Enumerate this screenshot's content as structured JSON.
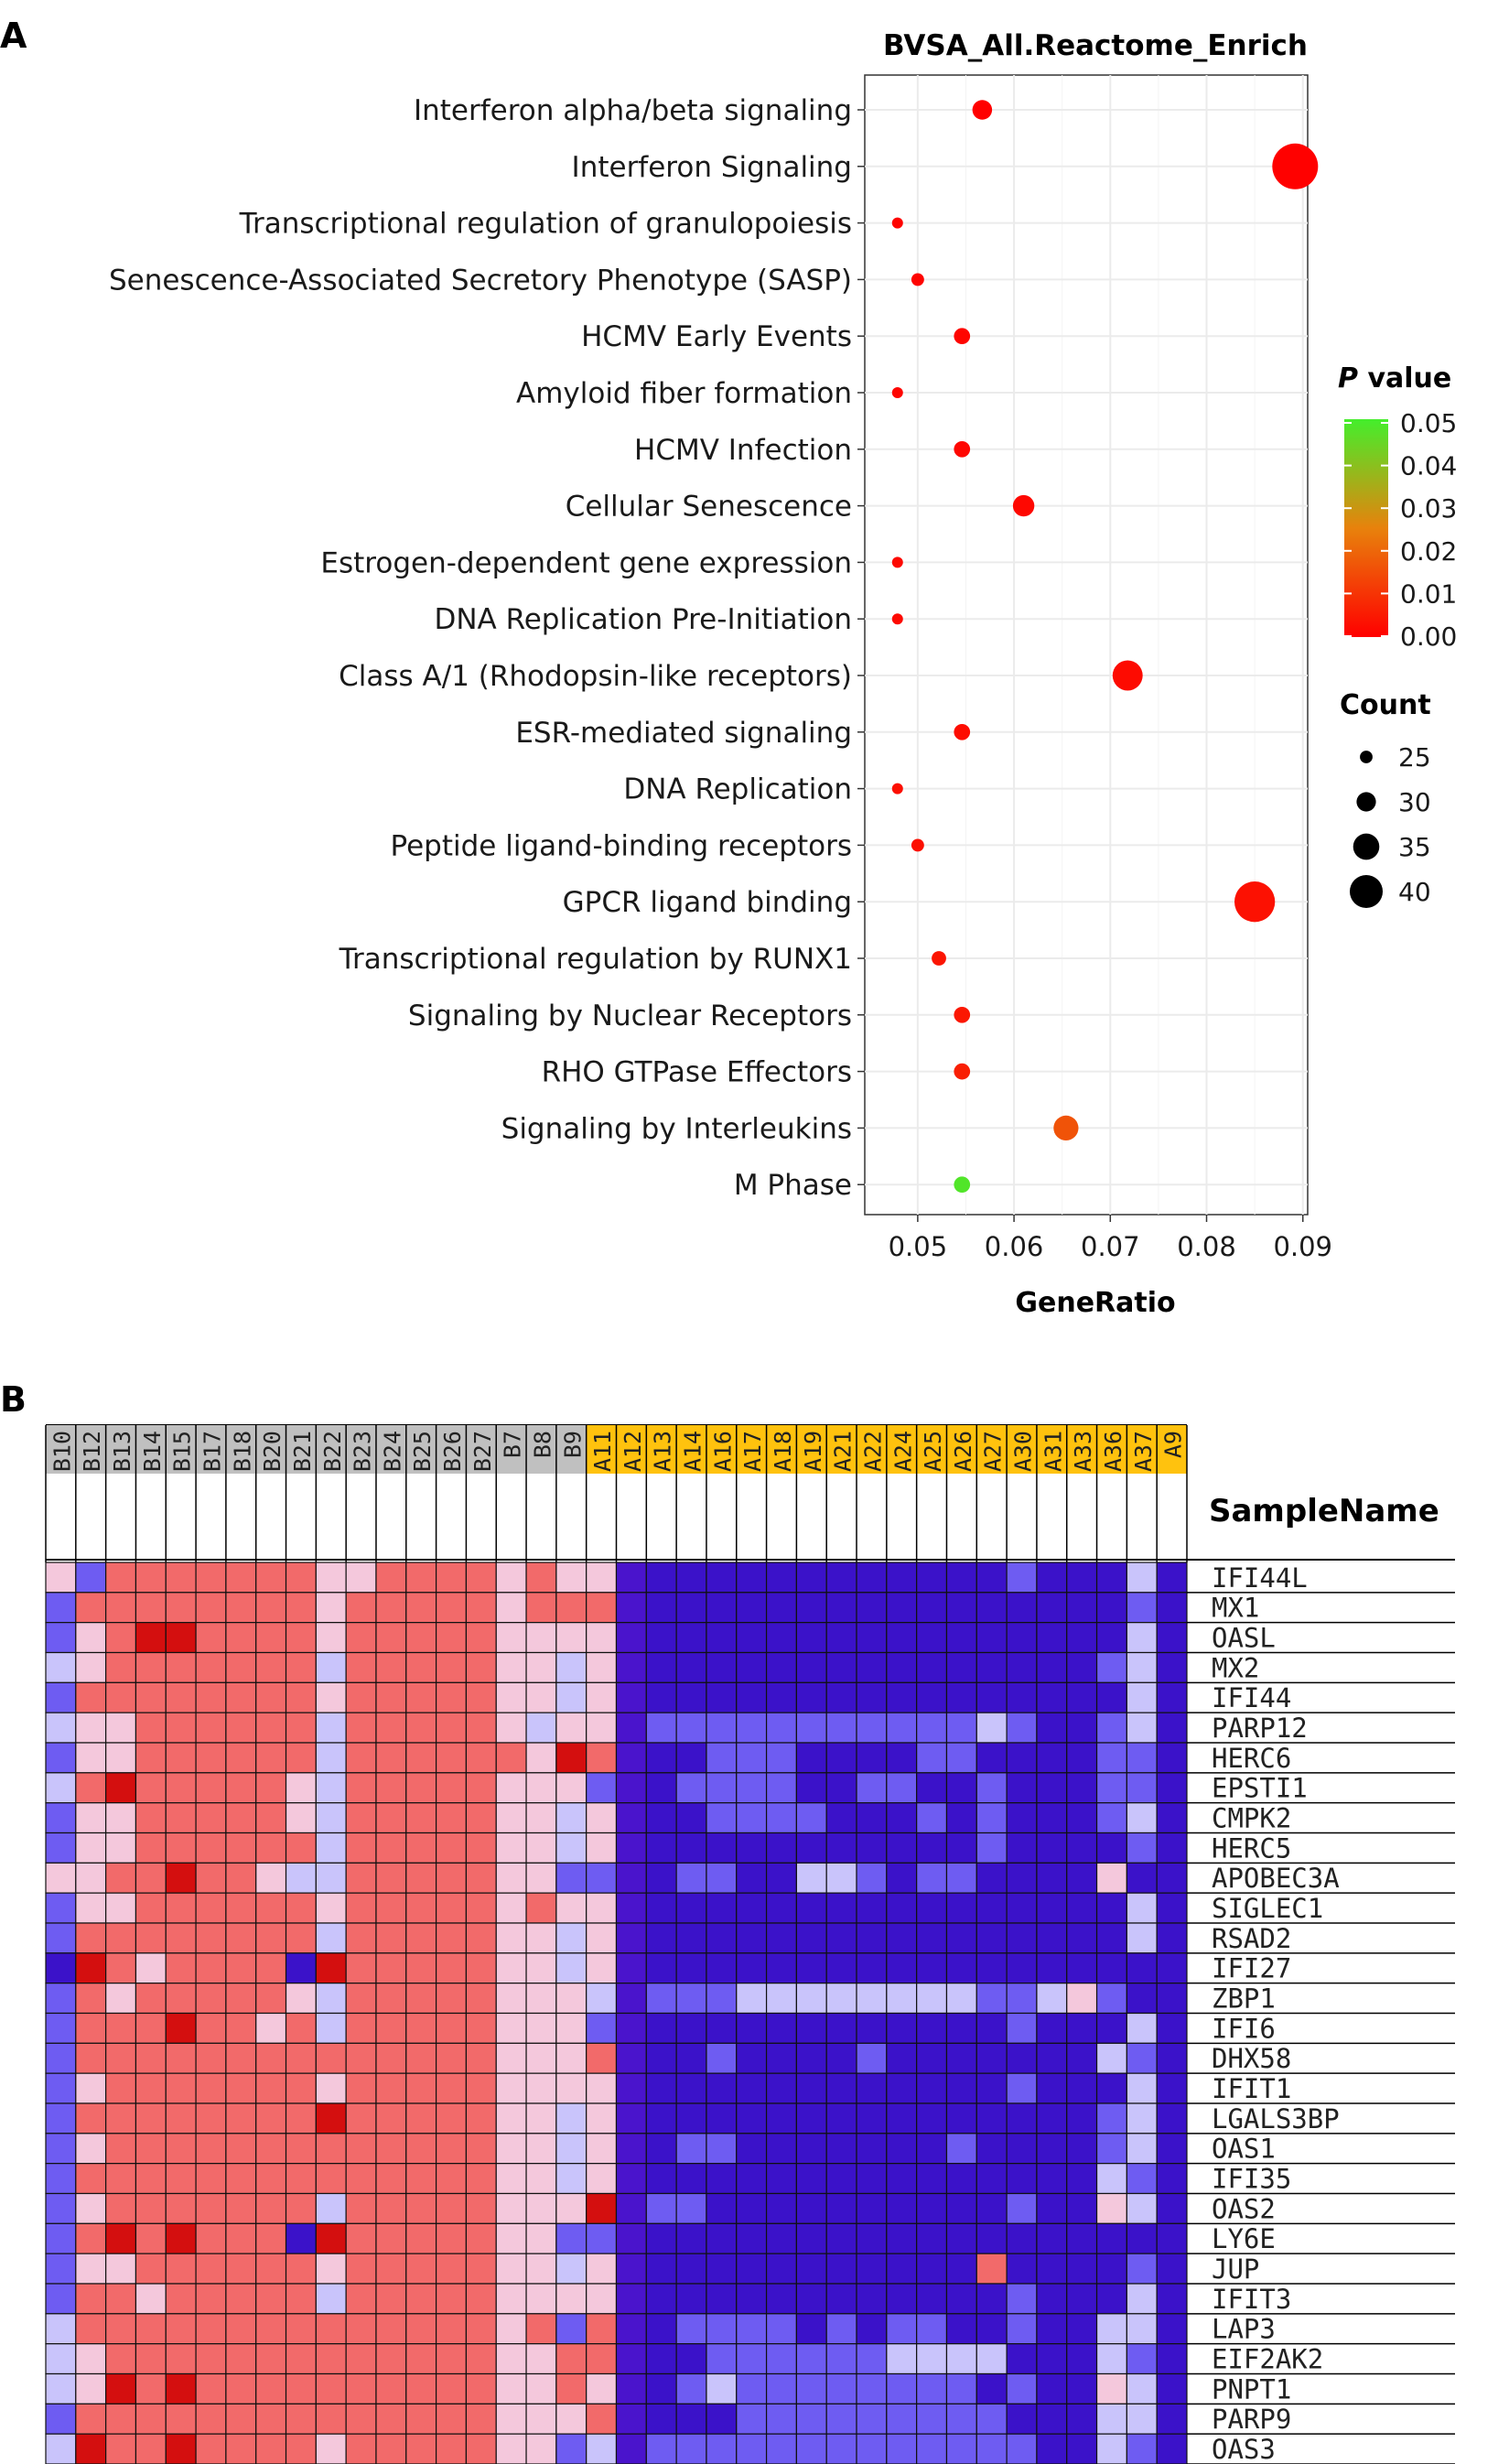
{
  "panels": {
    "a_label": "A",
    "b_label": "B"
  },
  "chart_data": [
    {
      "type": "scatter",
      "title": "BVSA_All.Reactome_Enrich",
      "xlabel": "GeneRatio",
      "ylabel": "",
      "xlim": [
        0.0445,
        0.0905
      ],
      "xticks": [
        0.05,
        0.06,
        0.07,
        0.08,
        0.09
      ],
      "xtick_labels": [
        "0.05",
        "0.06",
        "0.07",
        "0.08",
        "0.09"
      ],
      "categories": [
        "Interferon alpha/beta signaling",
        "Interferon Signaling",
        "Transcriptional regulation of granulopoiesis",
        "Senescence-Associated Secretory Phenotype (SASP)",
        "HCMV Early Events",
        "Amyloid fiber formation",
        "HCMV Infection",
        "Cellular Senescence",
        "Estrogen-dependent gene expression",
        "DNA Replication Pre-Initiation",
        "Class A/1 (Rhodopsin-like receptors)",
        "ESR-mediated signaling",
        "DNA Replication",
        "Peptide ligand-binding receptors",
        "GPCR ligand binding",
        "Transcriptional regulation by RUNX1",
        "Signaling by Nuclear Receptors",
        "RHO GTPase Effectors",
        "Signaling by Interleukins",
        "M Phase"
      ],
      "gene_ratio": [
        0.0567,
        0.0892,
        0.0479,
        0.05,
        0.0546,
        0.0479,
        0.0546,
        0.061,
        0.0479,
        0.0479,
        0.0718,
        0.0546,
        0.0479,
        0.05,
        0.085,
        0.0522,
        0.0546,
        0.0546,
        0.0654,
        0.0546
      ],
      "count": [
        27,
        42,
        22,
        23,
        25,
        22,
        25,
        28,
        22,
        22,
        33,
        25,
        22,
        23,
        39,
        24,
        25,
        25,
        30,
        25
      ],
      "p_value": [
        0.0001,
        0.0001,
        0.0006,
        0.0008,
        0.001,
        0.0011,
        0.0013,
        0.0015,
        0.0018,
        0.002,
        0.0022,
        0.0025,
        0.0028,
        0.003,
        0.0033,
        0.004,
        0.0045,
        0.006,
        0.016,
        0.048
      ],
      "legend_color": {
        "title_p": "P",
        "title_rest": " value",
        "ticks": [
          "0.05",
          "0.04",
          "0.03",
          "0.02",
          "0.01",
          "0.00"
        ],
        "colors": [
          "#ff0000",
          "#e8820c",
          "#44ee2c"
        ]
      },
      "legend_size": {
        "title": "Count",
        "values": [
          25,
          30,
          35,
          40
        ],
        "labels": [
          "25",
          "30",
          "35",
          "40"
        ]
      },
      "legend_placement": "right"
    },
    {
      "type": "heatmap",
      "legend_title": "SampleName",
      "samples": [
        "B10",
        "B12",
        "B13",
        "B14",
        "B15",
        "B17",
        "B18",
        "B20",
        "B21",
        "B22",
        "B23",
        "B24",
        "B25",
        "B26",
        "B27",
        "B7",
        "B8",
        "B9",
        "A11",
        "A12",
        "A13",
        "A14",
        "A16",
        "A17",
        "A18",
        "A19",
        "A21",
        "A22",
        "A24",
        "A25",
        "A26",
        "A27",
        "A30",
        "A31",
        "A33",
        "A36",
        "A37",
        "A9"
      ],
      "groups": [
        "B",
        "B",
        "B",
        "B",
        "B",
        "B",
        "B",
        "B",
        "B",
        "B",
        "B",
        "B",
        "B",
        "B",
        "B",
        "B",
        "B",
        "B",
        "A",
        "A",
        "A",
        "A",
        "A",
        "A",
        "A",
        "A",
        "A",
        "A",
        "A",
        "A",
        "A",
        "A",
        "A",
        "A",
        "A",
        "A",
        "A",
        "A"
      ],
      "group_colors": {
        "B": "#c0c0c0",
        "A": "#ffc20e"
      },
      "genes": [
        "IFI44L",
        "MX1",
        "OASL",
        "MX2",
        "IFI44",
        "PARP12",
        "HERC6",
        "EPSTI1",
        "CMPK2",
        "HERC5",
        "APOBEC3A",
        "SIGLEC1",
        "RSAD2",
        "IFI27",
        "ZBP1",
        "IFI6",
        "DHX58",
        "IFIT1",
        "LGALS3BP",
        "OAS1",
        "IFI35",
        "OAS2",
        "LY6E",
        "JUP",
        "IFIT3",
        "LAP3",
        "EIF2AK2",
        "PNPT1",
        "PARP9",
        "OAS3"
      ],
      "rows": [
        "3144444443344443433A000000000000100020",
        "1444444443444443444A000000000000000010",
        "1345544443444443333A000000000000000020",
        "2344444442444443323A000000000000000120",
        "1444444443444443323A000000000000000020",
        "2334444442444443233A111111111112100120",
        "1334444442444444354A001110000110000110",
        "2454444432444443331A011110011001000110",
        "1334444432444443323A001111000101000120",
        "1334444442444443323A000000000001000010",
        "3344544322444443311A011002210110000300",
        "1334444443444443433A000000000000000020",
        "1444444442444443323A000000000000000020",
        "0543444405444443323A000000000000000000",
        "1434444432444443332A111222222221123100",
        "1444544342444443331A000000000000100020",
        "1444444444444443334A001000010000000210",
        "1344444443444443333A000000000000100020",
        "1444444445444443323A000000000000000120",
        "1344444444444443323A011000000010000120",
        "1444444444444443323A000000000000000210",
        "1344444442444443335A110000000000100320",
        "1454544405444443311A000000000000000000",
        "1334444443444443323A000000000004000010",
        "1443444442444443333A000000000000100020",
        "2444444444444443414A011110101100100220",
        "2344444444444443344A001111112222000210",
        "2354544444444443343A012111111110100320",
        "1444444444444443334A000111111111000220",
        "2544544443444443312A111111111111100210"
      ],
      "value_scale": "0 = strong blue (low), 2 = pale, 4 = red (high), 5 = dark red"
    }
  ]
}
